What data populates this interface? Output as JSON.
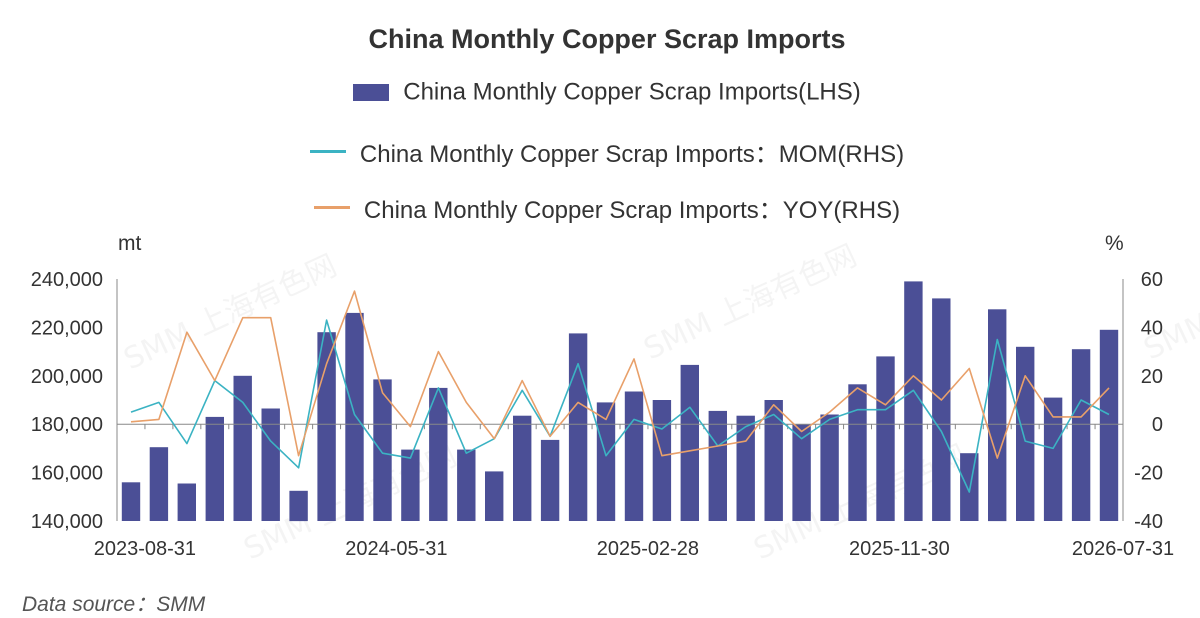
{
  "source_note": "Data source：SMM",
  "watermark": "SMM 上海有色网",
  "chart_data": {
    "type": "bar",
    "title": "China Monthly Copper Scrap Imports",
    "left_unit": "mt",
    "right_unit": "%",
    "left_ylim": [
      140000,
      240000
    ],
    "right_ylim": [
      -40,
      60
    ],
    "left_ticks": [
      "240,000",
      "220,000",
      "200,000",
      "180,000",
      "160,000",
      "140,000"
    ],
    "right_ticks": [
      "60",
      "40",
      "20",
      "0",
      "-20",
      "-40"
    ],
    "x_tick_labels": [
      "2023-08-31",
      "2024-05-31",
      "2025-02-28",
      "2025-11-30",
      "2026-07-31"
    ],
    "x_tick_positions": [
      0.5,
      9.5,
      18.5,
      27.5,
      35.5
    ],
    "grid": false,
    "legend_position": "top-center",
    "series": [
      {
        "name": "China Monthly Copper Scrap Imports(LHS)",
        "type": "bar",
        "axis": "left",
        "color": "#4b4f96",
        "values": [
          156000,
          170500,
          155500,
          183000,
          200000,
          186500,
          152500,
          218000,
          226000,
          198500,
          169500,
          195000,
          169500,
          160500,
          183500,
          173500,
          217500,
          189000,
          193500,
          190000,
          204500,
          185500,
          183500,
          190000,
          180000,
          184000,
          196500,
          208000,
          239000,
          232000,
          168000,
          227500,
          212000,
          191000,
          211000,
          219000
        ]
      },
      {
        "name": "China Monthly Copper Scrap Imports：MOM(RHS)",
        "type": "line",
        "axis": "right",
        "color": "#3bb3c3",
        "values": [
          5,
          9,
          -8,
          18,
          9,
          -7,
          -18,
          43,
          4,
          -12,
          -14,
          15,
          -12,
          -6,
          14,
          -5,
          25,
          -13,
          2,
          -2,
          7,
          -9,
          -1,
          4,
          -6,
          2,
          6,
          6,
          14,
          -3,
          -28,
          35,
          -7,
          -10,
          10,
          4
        ]
      },
      {
        "name": "China Monthly Copper Scrap Imports：YOY(RHS)",
        "type": "line",
        "axis": "right",
        "color": "#e8a06a",
        "values": [
          1,
          2,
          38,
          18,
          44,
          44,
          -13,
          25,
          55,
          13,
          -1,
          30,
          9,
          -6,
          18,
          -5,
          9,
          2,
          27,
          -13,
          -11,
          -9,
          -7,
          8,
          -3,
          5,
          15,
          8,
          20,
          10,
          23,
          -14,
          20,
          3,
          3,
          15
        ]
      }
    ]
  }
}
